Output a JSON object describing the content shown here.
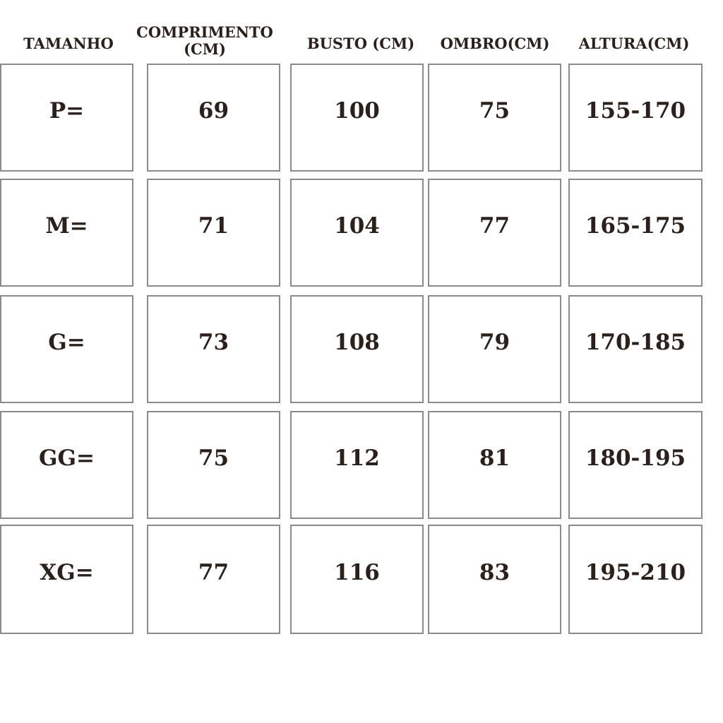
{
  "table": {
    "headers": [
      "TAMANHO",
      "COMPRIMENTO (CM)",
      "BUSTO (CM)",
      "OMBRO(CM)",
      "ALTURA(CM)"
    ],
    "rows": [
      [
        "P=",
        "69",
        "100",
        "75",
        "155-170"
      ],
      [
        "M=",
        "71",
        "104",
        "77",
        "165-175"
      ],
      [
        "G=",
        "73",
        "108",
        "79",
        "170-185"
      ],
      [
        "GG=",
        "75",
        "112",
        "81",
        "180-195"
      ],
      [
        "XG=",
        "77",
        "116",
        "83",
        "195-210"
      ]
    ]
  }
}
